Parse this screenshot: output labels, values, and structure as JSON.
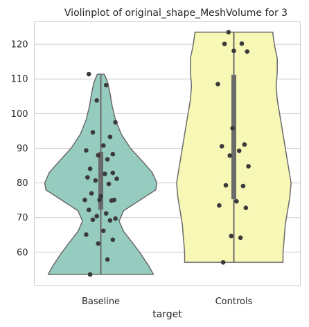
{
  "chart_data": {
    "type": "violin",
    "title": "Violinplot of original_shape_MeshVolume for 3",
    "xlabel": "target",
    "ylabel": "",
    "categories": [
      "Baseline",
      "Controls"
    ],
    "ylim": [
      50.5,
      126.5
    ],
    "yticks": [
      60,
      70,
      80,
      90,
      100,
      110,
      120
    ],
    "grid": "horizontal",
    "series": [
      {
        "category": "Baseline",
        "color": "#96cbbf",
        "min": 53.6,
        "max": 111.4,
        "q1": 72.3,
        "q3": 88.9,
        "median": 80.5,
        "density": [
          [
            53.6,
            0.46
          ],
          [
            56,
            0.42
          ],
          [
            60,
            0.34
          ],
          [
            63,
            0.27
          ],
          [
            66,
            0.2
          ],
          [
            69,
            0.16
          ],
          [
            72,
            0.2
          ],
          [
            75,
            0.34
          ],
          [
            78,
            0.48
          ],
          [
            80,
            0.49
          ],
          [
            83,
            0.45
          ],
          [
            86,
            0.37
          ],
          [
            90,
            0.26
          ],
          [
            94,
            0.18
          ],
          [
            98,
            0.13
          ],
          [
            102,
            0.1
          ],
          [
            106,
            0.08
          ],
          [
            109,
            0.06
          ],
          [
            111.4,
            0.03
          ]
        ],
        "points": [
          53.6,
          57.9,
          62.5,
          63.6,
          65.1,
          66.2,
          69.2,
          69.4,
          69.7,
          70.4,
          71.2,
          72.2,
          74.9,
          75.1,
          75.1,
          75.1,
          76.2,
          77,
          79.7,
          80.7,
          81.2,
          81.6,
          82.6,
          82.9,
          84.1,
          86.8,
          88,
          88.3,
          89.4,
          90.8,
          93.3,
          94.6,
          97.5,
          103.8,
          108.2,
          111.4
        ]
      },
      {
        "category": "Controls",
        "color": "#f7f7b6",
        "min": 57.1,
        "max": 123.5,
        "q1": 75.3,
        "q3": 111.2,
        "median": 91,
        "density": [
          [
            57.1,
            0.43
          ],
          [
            60,
            0.43
          ],
          [
            64,
            0.44
          ],
          [
            68,
            0.45
          ],
          [
            72,
            0.47
          ],
          [
            76,
            0.49
          ],
          [
            80,
            0.5
          ],
          [
            84,
            0.48
          ],
          [
            88,
            0.46
          ],
          [
            92,
            0.44
          ],
          [
            96,
            0.42
          ],
          [
            100,
            0.4
          ],
          [
            104,
            0.38
          ],
          [
            108,
            0.37
          ],
          [
            112,
            0.38
          ],
          [
            116,
            0.38
          ],
          [
            119,
            0.36
          ],
          [
            121,
            0.35
          ],
          [
            123.5,
            0.34
          ]
        ],
        "points": [
          57.1,
          64.2,
          64.7,
          72.8,
          73.5,
          74.7,
          79.1,
          79.3,
          84.8,
          87.9,
          89.3,
          90.6,
          91.1,
          95.8,
          108.5,
          117.9,
          118.1,
          120.1,
          120.2,
          123.5
        ]
      }
    ]
  }
}
